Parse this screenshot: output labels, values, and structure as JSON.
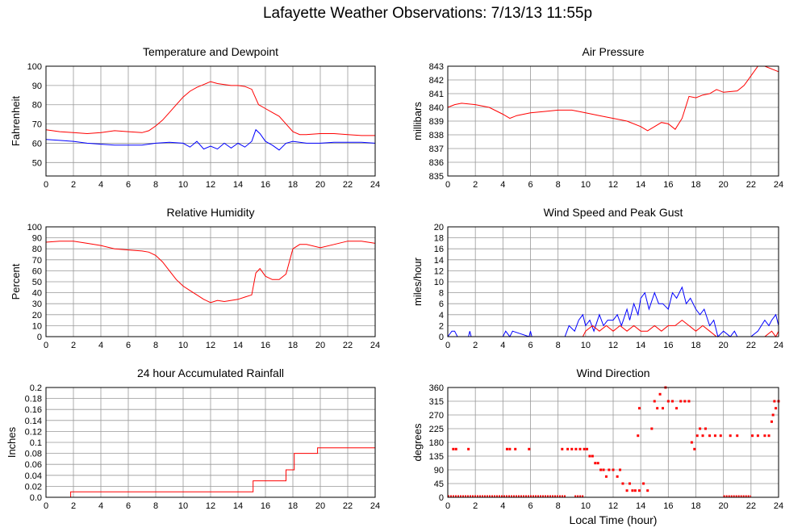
{
  "page": {
    "title": "Lafayette Weather Observations: 7/13/13 11:55p",
    "x_caption": "Local Time (hour)"
  },
  "colors": {
    "red": "#ff0000",
    "blue": "#0000ff",
    "grid": "#999999",
    "frame": "#000000"
  },
  "chart_data": [
    {
      "id": "temperature",
      "type": "line",
      "title": "Temperature and Dewpoint",
      "ylabel": "Fahrenheit",
      "xlabel": "",
      "xlim": [
        0,
        24
      ],
      "ylim": [
        43,
        100
      ],
      "xticks": [
        0,
        2,
        4,
        6,
        8,
        10,
        12,
        14,
        16,
        18,
        20,
        22,
        24
      ],
      "yticks": [
        50,
        60,
        70,
        80,
        90,
        100
      ],
      "grid": true,
      "series": [
        {
          "color": "red",
          "x": [
            0,
            1,
            2,
            3,
            4,
            5,
            6,
            7,
            7.5,
            8,
            8.5,
            9,
            9.5,
            10,
            10.5,
            11,
            11.5,
            12,
            12.5,
            13,
            13.5,
            14,
            14.5,
            15,
            15.5,
            16,
            16.5,
            17,
            17.5,
            18,
            18.5,
            19,
            20,
            21,
            22,
            23,
            24
          ],
          "y": [
            67,
            66,
            65.5,
            65,
            65.5,
            66.5,
            66,
            65.5,
            66.5,
            69,
            72,
            76,
            80,
            84,
            87,
            89,
            90.5,
            92,
            91,
            90.5,
            90,
            90,
            89.5,
            88,
            80,
            78,
            76,
            74,
            70,
            66,
            64.5,
            64.5,
            65,
            65,
            64.5,
            64,
            64
          ]
        },
        {
          "color": "blue",
          "x": [
            0,
            1,
            2,
            3,
            4,
            5,
            6,
            7,
            8,
            9,
            10,
            10.5,
            11,
            11.5,
            12,
            12.5,
            13,
            13.5,
            14,
            14.5,
            15,
            15.3,
            15.6,
            16,
            16.5,
            17,
            17.5,
            18,
            19,
            20,
            21,
            22,
            23,
            24
          ],
          "y": [
            62,
            61.5,
            61,
            60,
            59.5,
            59,
            59,
            59,
            60,
            60.5,
            60,
            58,
            61,
            57,
            58.5,
            57,
            60,
            57.5,
            60,
            58,
            61,
            67,
            65,
            61,
            59,
            56.5,
            60,
            61,
            60,
            60,
            60.5,
            60.5,
            60.5,
            60
          ]
        }
      ]
    },
    {
      "id": "pressure",
      "type": "line",
      "title": "Air Pressure",
      "ylabel": "millibars",
      "xlabel": "",
      "xlim": [
        0,
        24
      ],
      "ylim": [
        835,
        843
      ],
      "xticks": [
        0,
        2,
        4,
        6,
        8,
        10,
        12,
        14,
        16,
        18,
        20,
        22,
        24
      ],
      "yticks": [
        835,
        836,
        837,
        838,
        839,
        840,
        841,
        842,
        843
      ],
      "grid": true,
      "series": [
        {
          "color": "red",
          "x": [
            0,
            0.5,
            1,
            2,
            3,
            4,
            4.5,
            5,
            6,
            7,
            8,
            9,
            10,
            11,
            12,
            13,
            14,
            14.5,
            15,
            15.5,
            16,
            16.5,
            17,
            17.5,
            18,
            18.5,
            19,
            19.5,
            20,
            21,
            21.5,
            22,
            22.5,
            23,
            24
          ],
          "y": [
            840,
            840.2,
            840.3,
            840.2,
            840,
            839.5,
            839.2,
            839.4,
            839.6,
            839.7,
            839.8,
            839.8,
            839.6,
            839.4,
            839.2,
            839,
            838.6,
            838.3,
            838.6,
            838.9,
            838.8,
            838.4,
            839.2,
            840.8,
            840.7,
            840.9,
            841,
            841.3,
            841.1,
            841.2,
            841.6,
            842.3,
            843,
            843,
            842.6
          ]
        }
      ]
    },
    {
      "id": "humidity",
      "type": "line",
      "title": "Relative Humidity",
      "ylabel": "Percent",
      "xlabel": "",
      "xlim": [
        0,
        24
      ],
      "ylim": [
        0,
        100
      ],
      "xticks": [
        0,
        2,
        4,
        6,
        8,
        10,
        12,
        14,
        16,
        18,
        20,
        22,
        24
      ],
      "yticks": [
        0,
        10,
        20,
        30,
        40,
        50,
        60,
        70,
        80,
        90,
        100
      ],
      "grid": true,
      "series": [
        {
          "color": "red",
          "x": [
            0,
            1,
            2,
            3,
            4,
            5,
            6,
            7,
            7.5,
            8,
            8.5,
            9,
            9.5,
            10,
            10.5,
            11,
            11.5,
            12,
            12.5,
            13,
            13.5,
            14,
            14.5,
            15,
            15.3,
            15.6,
            16,
            16.5,
            17,
            17.5,
            18,
            18.5,
            19,
            20,
            21,
            22,
            23,
            24
          ],
          "y": [
            86,
            87,
            87,
            85,
            83,
            80,
            79,
            78,
            77,
            74,
            68,
            60,
            52,
            46,
            42,
            38,
            34,
            31,
            33,
            32,
            33,
            34,
            36,
            38,
            58,
            62,
            55,
            52,
            52,
            57,
            80,
            84,
            84,
            81,
            84,
            87,
            87,
            85
          ]
        }
      ]
    },
    {
      "id": "wind",
      "type": "line",
      "title": "Wind Speed and Peak Gust",
      "ylabel": "miles/hour",
      "xlabel": "",
      "xlim": [
        0,
        24
      ],
      "ylim": [
        0,
        20
      ],
      "xticks": [
        0,
        2,
        4,
        6,
        8,
        10,
        12,
        14,
        16,
        18,
        20,
        22,
        24
      ],
      "yticks": [
        0,
        2,
        4,
        6,
        8,
        10,
        12,
        14,
        16,
        18,
        20
      ],
      "grid": true,
      "series": [
        {
          "color": "blue",
          "x": [
            0,
            0.3,
            0.5,
            0.7,
            1.5,
            1.6,
            1.7,
            4,
            4.2,
            4.5,
            4.7,
            5.9,
            6,
            6.1,
            8.5,
            8.8,
            9.2,
            9.5,
            9.8,
            10,
            10.3,
            10.6,
            11,
            11.3,
            11.6,
            12,
            12.3,
            12.6,
            13,
            13.2,
            13.5,
            13.8,
            14,
            14.3,
            14.6,
            15,
            15.3,
            15.6,
            16,
            16.3,
            16.6,
            17,
            17.3,
            17.6,
            18,
            18.3,
            18.6,
            19,
            19.3,
            19.6,
            20,
            20.5,
            20.8,
            21,
            22,
            22.5,
            23,
            23.3,
            23.5,
            23.8,
            24
          ],
          "y": [
            0,
            1,
            1,
            0,
            0,
            1,
            0,
            0,
            1,
            0,
            1,
            0,
            1,
            0,
            0,
            2,
            1,
            3,
            4,
            2,
            3,
            1,
            4,
            2,
            3,
            3,
            4,
            2,
            5,
            3,
            6,
            4,
            7,
            8,
            5,
            8,
            6,
            6,
            5,
            8,
            7,
            9,
            6,
            7,
            5,
            4,
            5,
            2,
            3,
            0,
            1,
            0,
            1,
            0,
            0,
            1,
            3,
            2,
            3,
            4,
            2
          ]
        },
        {
          "color": "red",
          "x": [
            0,
            9.8,
            10,
            10.5,
            11,
            11.5,
            12,
            12.5,
            13,
            13.5,
            14,
            14.5,
            15,
            15.5,
            16,
            16.5,
            17,
            17.5,
            18,
            18.5,
            19,
            19.5,
            20,
            23,
            23.5,
            23.8,
            24
          ],
          "y": [
            0,
            0,
            1,
            2,
            1,
            2,
            1,
            2,
            1,
            2,
            1,
            1,
            2,
            1,
            2,
            2,
            3,
            2,
            1,
            2,
            1,
            0,
            0,
            0,
            1,
            0,
            1
          ]
        }
      ]
    },
    {
      "id": "rainfall",
      "type": "line",
      "title": "24 hour Accumulated Rainfall",
      "ylabel": "Inches",
      "xlabel": "",
      "xlim": [
        0,
        24
      ],
      "ylim": [
        0,
        0.2
      ],
      "xticks": [
        0,
        2,
        4,
        6,
        8,
        10,
        12,
        14,
        16,
        18,
        20,
        22,
        24
      ],
      "yticks": [
        0,
        0.02,
        0.04,
        0.06,
        0.08,
        0.1,
        0.12,
        0.14,
        0.16,
        0.18,
        0.2
      ],
      "ytick_labels": [
        "0.0",
        "0.02",
        "0.04",
        "0.06",
        "0.08",
        "0.1",
        "0.12",
        "0.14",
        "0.16",
        "0.18",
        "0.2"
      ],
      "grid": true,
      "series": [
        {
          "color": "red",
          "step": true,
          "x": [
            0,
            1.8,
            15.1,
            17.5,
            18.1,
            19.8,
            24
          ],
          "y": [
            0,
            0.01,
            0.03,
            0.05,
            0.08,
            0.09,
            0.09
          ]
        }
      ]
    },
    {
      "id": "direction",
      "type": "scatter",
      "title": "Wind Direction",
      "ylabel": "degrees",
      "xlabel": "Local Time (hour)",
      "xlim": [
        0,
        24
      ],
      "ylim": [
        0,
        360
      ],
      "xticks": [
        0,
        2,
        4,
        6,
        8,
        10,
        12,
        14,
        16,
        18,
        20,
        22,
        24
      ],
      "yticks": [
        0,
        45,
        90,
        135,
        180,
        225,
        270,
        315,
        360
      ],
      "grid": true,
      "series": [
        {
          "color": "red",
          "points": [
            [
              0.4,
              158
            ],
            [
              0.6,
              158
            ],
            [
              1.5,
              158
            ],
            [
              4.3,
              158
            ],
            [
              4.5,
              158
            ],
            [
              4.9,
              158
            ],
            [
              5.9,
              158
            ],
            [
              8.3,
              158
            ],
            [
              8.7,
              158
            ],
            [
              9,
              158
            ],
            [
              9.3,
              158
            ],
            [
              9.6,
              158
            ],
            [
              9.9,
              158
            ],
            [
              10.1,
              158
            ],
            [
              10.3,
              135
            ],
            [
              10.5,
              135
            ],
            [
              10.7,
              112
            ],
            [
              10.9,
              112
            ],
            [
              11.1,
              90
            ],
            [
              11.3,
              90
            ],
            [
              11.5,
              68
            ],
            [
              11.7,
              90
            ],
            [
              12,
              90
            ],
            [
              12.3,
              68
            ],
            [
              12.5,
              90
            ],
            [
              12.7,
              45
            ],
            [
              13,
              22
            ],
            [
              13.2,
              45
            ],
            [
              13.4,
              22
            ],
            [
              13.6,
              22
            ],
            [
              13.9,
              22
            ],
            [
              14.2,
              45
            ],
            [
              14.5,
              22
            ],
            [
              13.8,
              202
            ],
            [
              13.9,
              292
            ],
            [
              14.8,
              225
            ],
            [
              15,
              315
            ],
            [
              15.2,
              292
            ],
            [
              15.4,
              338
            ],
            [
              15.6,
              292
            ],
            [
              15.8,
              360
            ],
            [
              16,
              315
            ],
            [
              16.3,
              315
            ],
            [
              16.6,
              292
            ],
            [
              16.9,
              315
            ],
            [
              17.2,
              315
            ],
            [
              17.5,
              315
            ],
            [
              17.7,
              180
            ],
            [
              17.9,
              158
            ],
            [
              18.1,
              202
            ],
            [
              18.3,
              225
            ],
            [
              18.5,
              202
            ],
            [
              18.7,
              225
            ],
            [
              19,
              202
            ],
            [
              19.4,
              202
            ],
            [
              19.8,
              202
            ],
            [
              20.5,
              202
            ],
            [
              21,
              202
            ],
            [
              22.1,
              202
            ],
            [
              22.5,
              202
            ],
            [
              23,
              202
            ],
            [
              23.3,
              202
            ],
            [
              23.5,
              248
            ],
            [
              23.6,
              270
            ],
            [
              23.7,
              315
            ],
            [
              23.8,
              292
            ],
            [
              24,
              315
            ]
          ],
          "zero_runs": [
            [
              0,
              8.6
            ],
            [
              9.2,
              9.9
            ],
            [
              20,
              22
            ]
          ]
        }
      ]
    }
  ]
}
